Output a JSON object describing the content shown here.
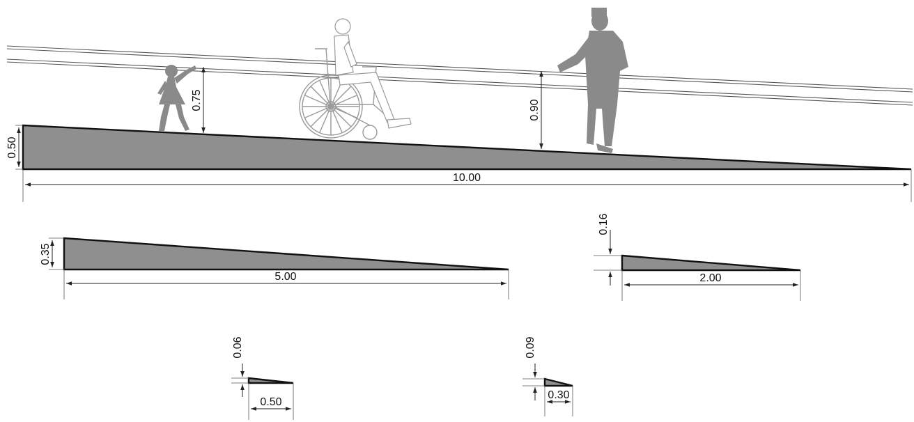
{
  "colors": {
    "ramp_fill": "#8f8f8f",
    "silhouette": "#8a8a8a",
    "wheelchair_line": "#9a9a9a",
    "line": "#222222"
  },
  "figures": {
    "child": "child-silhouette",
    "wheelchair_user": "wheelchair-user-figure",
    "adult": "adult-man-silhouette"
  },
  "main_ramp": {
    "height_label": "0.50",
    "length_label": "10.00",
    "child_rail_height": "0.75",
    "adult_rail_height": "0.90"
  },
  "ramp_2": {
    "height_label": "0.35",
    "length_label": "5.00"
  },
  "ramp_3": {
    "height_label": "0.16",
    "length_label": "2.00"
  },
  "ramp_4": {
    "height_label": "0.06",
    "length_label": "0.50"
  },
  "ramp_5": {
    "height_label": "0.09",
    "length_label": "0.30"
  }
}
